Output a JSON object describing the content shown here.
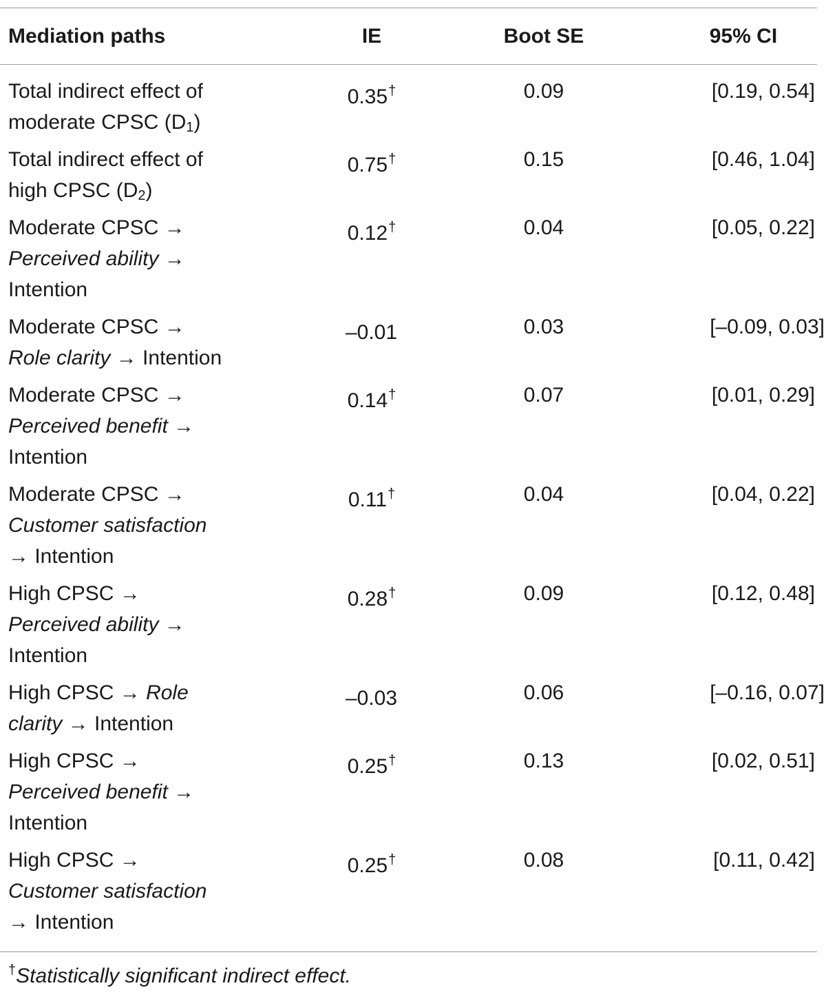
{
  "table": {
    "headers": {
      "path": "Mediation paths",
      "ie": "IE",
      "se": "Boot SE",
      "ci": "95% CI"
    },
    "dagger": "†",
    "rows": [
      {
        "lines": [
          [
            {
              "t": "Total indirect effect of",
              "i": false
            }
          ],
          [
            {
              "t": "moderate CPSC (D",
              "i": false
            },
            {
              "sub": "1"
            },
            {
              "t": ")",
              "i": false
            }
          ]
        ],
        "ie": "0.35",
        "sig": true,
        "se": "0.09",
        "ci": "[0.19, 0.54]"
      },
      {
        "lines": [
          [
            {
              "t": "Total indirect effect of",
              "i": false
            }
          ],
          [
            {
              "t": "high CPSC (D",
              "i": false
            },
            {
              "sub": "2"
            },
            {
              "t": ")",
              "i": false
            }
          ]
        ],
        "ie": "0.75",
        "sig": true,
        "se": "0.15",
        "ci": "[0.46, 1.04]"
      },
      {
        "lines": [
          [
            {
              "t": "Moderate CPSC →",
              "i": false
            }
          ],
          [
            {
              "t": "Perceived ability",
              "i": true
            },
            {
              "t": " →",
              "i": false
            }
          ],
          [
            {
              "t": "Intention",
              "i": false
            }
          ]
        ],
        "ie": "0.12",
        "sig": true,
        "se": "0.04",
        "ci": "[0.05, 0.22]"
      },
      {
        "lines": [
          [
            {
              "t": "Moderate CPSC →",
              "i": false
            }
          ],
          [
            {
              "t": "Role clarity",
              "i": true
            },
            {
              "t": " → Intention",
              "i": false
            }
          ]
        ],
        "ie": "–0.01",
        "sig": false,
        "se": "0.03",
        "ci": "[–0.09, 0.03]"
      },
      {
        "lines": [
          [
            {
              "t": "Moderate CPSC →",
              "i": false
            }
          ],
          [
            {
              "t": "Perceived benefit",
              "i": true
            },
            {
              "t": " →",
              "i": false
            }
          ],
          [
            {
              "t": "Intention",
              "i": false
            }
          ]
        ],
        "ie": "0.14",
        "sig": true,
        "se": "0.07",
        "ci": "[0.01, 0.29]"
      },
      {
        "lines": [
          [
            {
              "t": "Moderate CPSC →",
              "i": false
            }
          ],
          [
            {
              "t": "Customer satisfaction",
              "i": true
            }
          ],
          [
            {
              "t": "→ Intention",
              "i": false
            }
          ]
        ],
        "ie": "0.11",
        "sig": true,
        "se": "0.04",
        "ci": "[0.04, 0.22]"
      },
      {
        "lines": [
          [
            {
              "t": "High CPSC →",
              "i": false
            }
          ],
          [
            {
              "t": "Perceived ability",
              "i": true
            },
            {
              "t": " →",
              "i": false
            }
          ],
          [
            {
              "t": "Intention",
              "i": false
            }
          ]
        ],
        "ie": "0.28",
        "sig": true,
        "se": "0.09",
        "ci": "[0.12, 0.48]"
      },
      {
        "lines": [
          [
            {
              "t": "High CPSC → ",
              "i": false
            },
            {
              "t": "Role",
              "i": true
            }
          ],
          [
            {
              "t": "clarity",
              "i": true
            },
            {
              "t": " → Intention",
              "i": false
            }
          ]
        ],
        "ie": "–0.03",
        "sig": false,
        "se": "0.06",
        "ci": "[–0.16, 0.07]"
      },
      {
        "lines": [
          [
            {
              "t": "High CPSC →",
              "i": false
            }
          ],
          [
            {
              "t": "Perceived benefit",
              "i": true
            },
            {
              "t": " →",
              "i": false
            }
          ],
          [
            {
              "t": "Intention",
              "i": false
            }
          ]
        ],
        "ie": "0.25",
        "sig": true,
        "se": "0.13",
        "ci": "[0.02, 0.51]"
      },
      {
        "lines": [
          [
            {
              "t": "High CPSC →",
              "i": false
            }
          ],
          [
            {
              "t": "Customer satisfaction",
              "i": true
            }
          ],
          [
            {
              "t": "→ Intention",
              "i": false
            }
          ]
        ],
        "ie": "0.25",
        "sig": true,
        "se": "0.08",
        "ci": "[0.11, 0.42]"
      }
    ]
  },
  "footnote": {
    "dagger": "†",
    "text": "Statistically significant indirect effect."
  }
}
